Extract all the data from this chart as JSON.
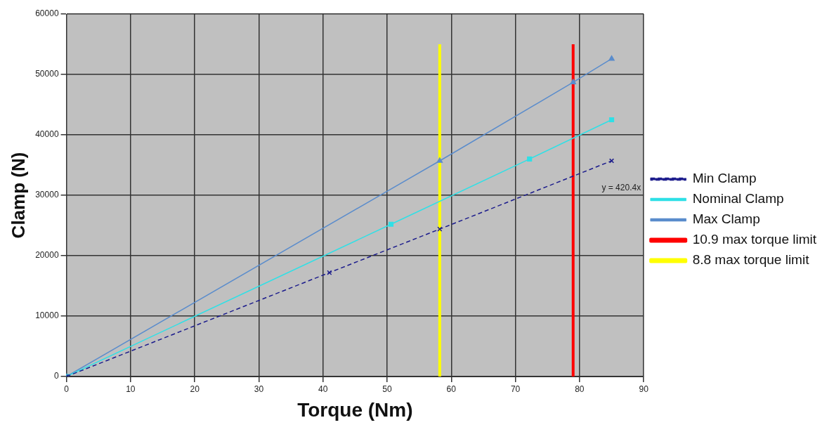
{
  "chart_data": {
    "type": "line",
    "xlabel": "Torque (Nm)",
    "ylabel": "Clamp (N)",
    "xlim": [
      0,
      90
    ],
    "xticks": [
      0,
      10,
      20,
      30,
      40,
      50,
      60,
      70,
      80,
      90
    ],
    "ylim": [
      0,
      60000
    ],
    "yticks": [
      0,
      10000,
      20000,
      30000,
      40000,
      50000,
      60000
    ],
    "grid": true,
    "legend": "right",
    "series": [
      {
        "name": "Min Clamp",
        "color": "#1c1c8c",
        "marker": "cross",
        "line_style": "dashed",
        "x": [
          0,
          41,
          58.2,
          85
        ],
        "values": [
          0,
          17200,
          24400,
          35700
        ]
      },
      {
        "name": "Nominal Clamp",
        "color": "#2fe0e6",
        "marker": "square",
        "line_style": "solid",
        "x": [
          0,
          50.6,
          72.2,
          85
        ],
        "values": [
          0,
          25200,
          36000,
          42500
        ]
      },
      {
        "name": "Max Clamp",
        "color": "#5a8ccc",
        "marker": "triangle",
        "line_style": "solid",
        "x": [
          0,
          58.2,
          79,
          85
        ],
        "values": [
          0,
          35700,
          48700,
          52600
        ]
      },
      {
        "name": "10.9 max torque limit",
        "color": "#ff0000",
        "marker": "none",
        "line_style": "solid",
        "x": [
          79,
          79
        ],
        "values": [
          0,
          55000
        ]
      },
      {
        "name": "8.8 max torque limit",
        "color": "#ffff00",
        "marker": "none",
        "line_style": "solid",
        "x": [
          58.2,
          58.2
        ],
        "values": [
          0,
          55000
        ]
      }
    ],
    "annotations": [
      "y = 420.4x"
    ]
  }
}
